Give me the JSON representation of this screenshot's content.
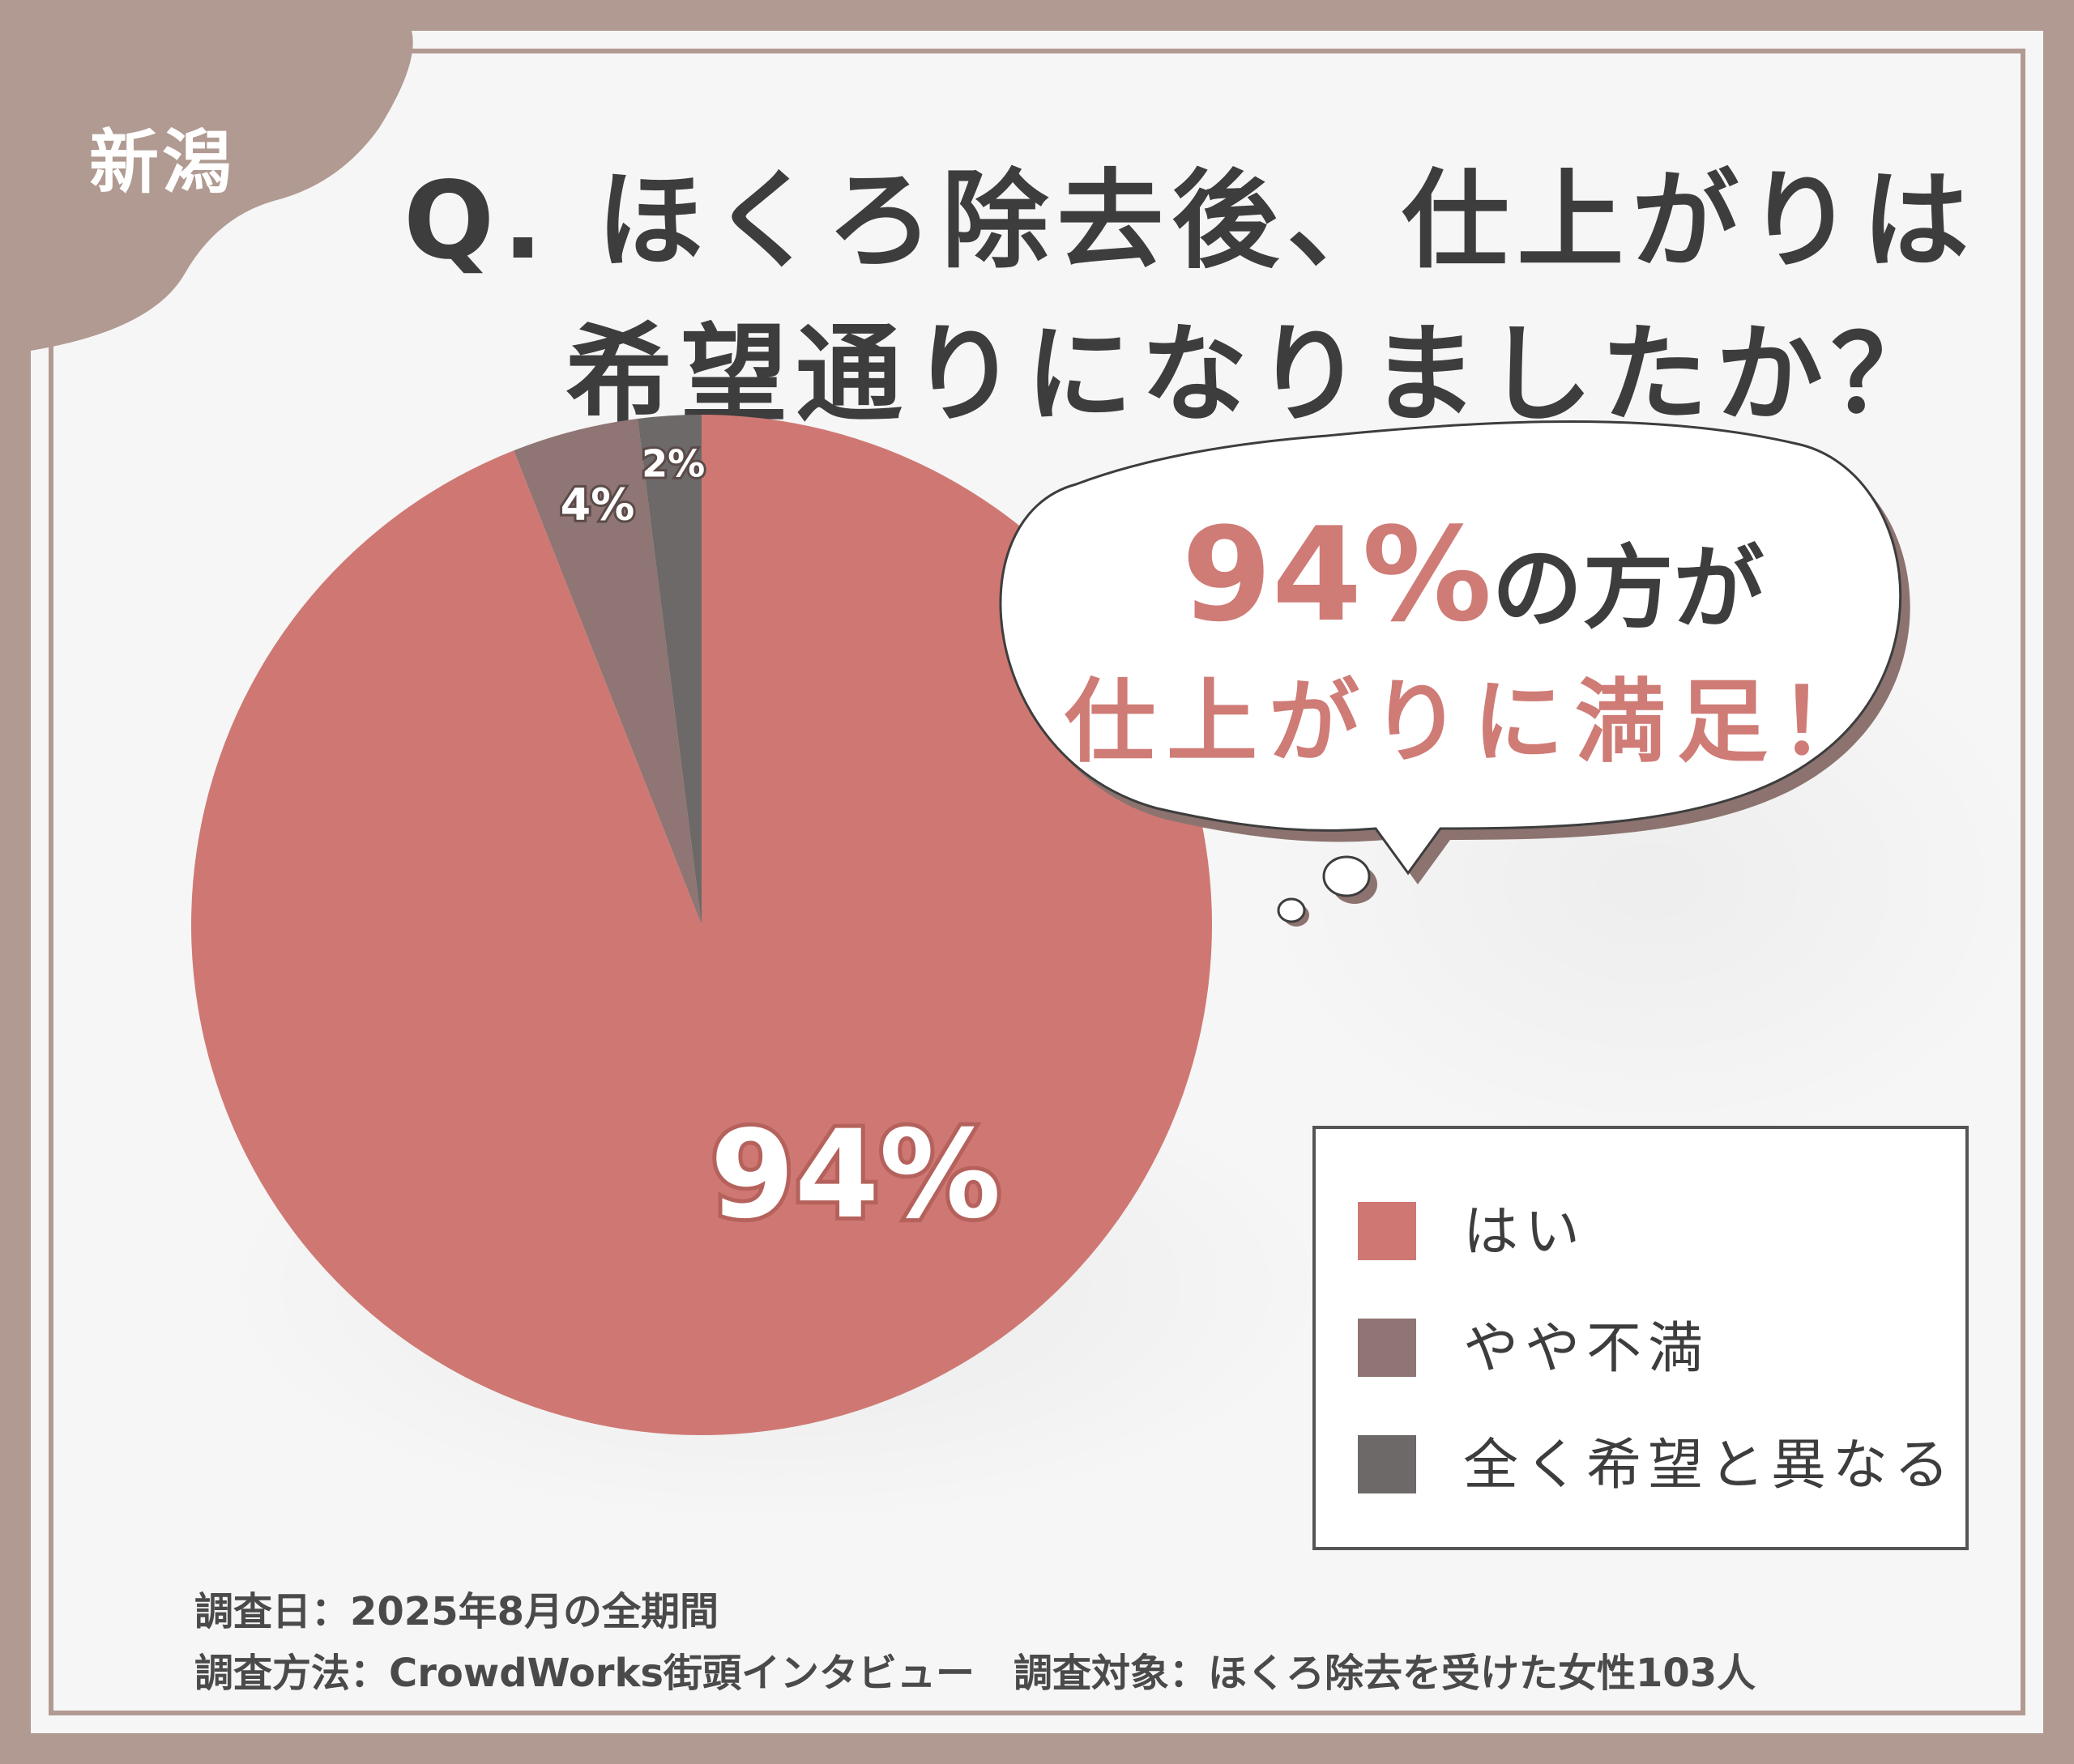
{
  "region": "新潟",
  "title": {
    "line1": "Q. ほくろ除去後、仕上がりは",
    "line2": "希望通りになりましたか？"
  },
  "bubble": {
    "percent": "94%",
    "line1_suffix": "の方が",
    "line2": "仕上がりに満足！"
  },
  "chart_data": {
    "type": "pie",
    "categories": [
      "はい",
      "やや不満",
      "全く希望と異なる"
    ],
    "values": [
      94,
      4,
      2
    ],
    "data_labels": [
      "94%",
      "4%",
      "2%"
    ],
    "colors": [
      "#cf7873",
      "#8f7573",
      "#6e6969"
    ],
    "legend_position": "right"
  },
  "footer": {
    "line1": "調査日：2025年8月の全期間",
    "line2": "調査方法：CrowdWorks街頭インタビュー　調査対象：ほくろ除去を受けた女性103人"
  }
}
